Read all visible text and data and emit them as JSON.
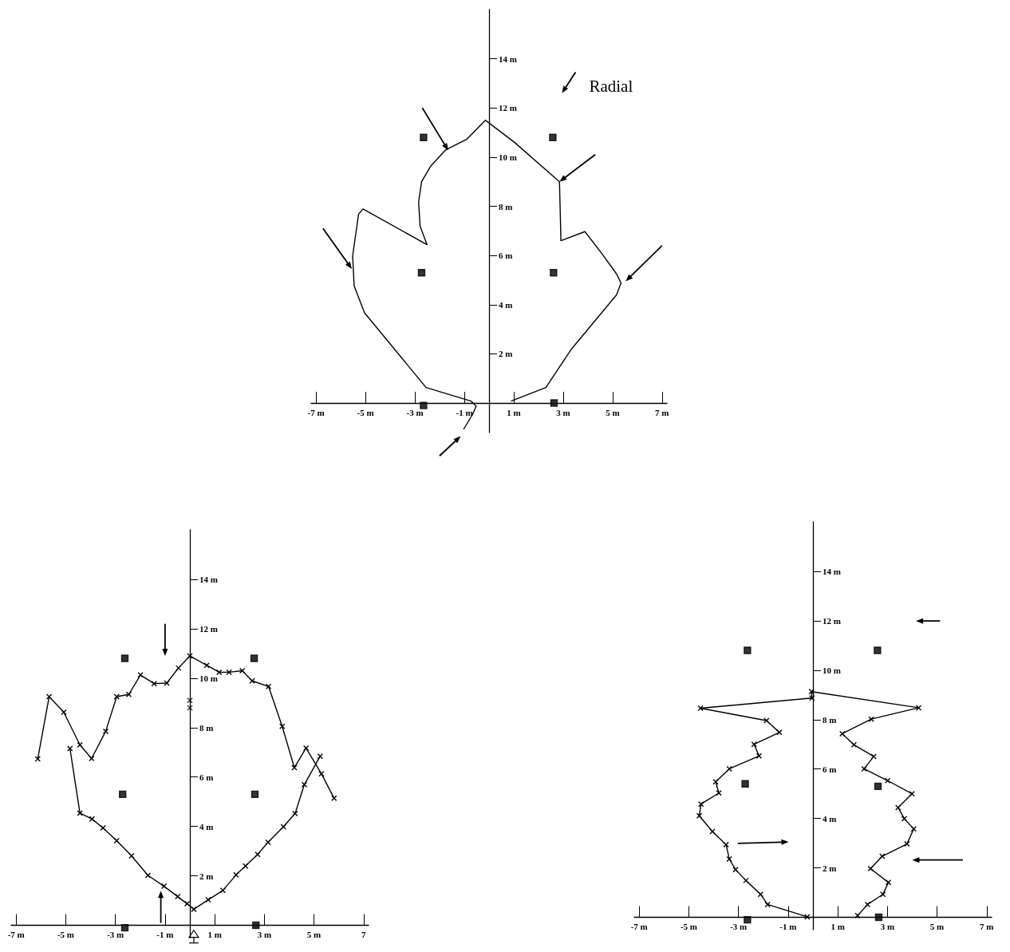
{
  "chart_data": [
    {
      "type": "line",
      "annotations": [
        "Radial"
      ],
      "xlim": [
        -7.2,
        7.2
      ],
      "ylim": [
        -1.2,
        16
      ],
      "xticks": [
        {
          "value": -7,
          "label": "-7 m"
        },
        {
          "value": -5,
          "label": "-5 m"
        },
        {
          "value": -3,
          "label": "-3 m"
        },
        {
          "value": -1,
          "label": "-1 m"
        },
        {
          "value": 1,
          "label": "1 m"
        },
        {
          "value": 3,
          "label": "3 m"
        },
        {
          "value": 5,
          "label": "5 m"
        },
        {
          "value": 7,
          "label": "7 m"
        }
      ],
      "yticks": [
        {
          "value": 2,
          "label": "2 m"
        },
        {
          "value": 4,
          "label": "4 m"
        },
        {
          "value": 6,
          "label": "6 m"
        },
        {
          "value": 8,
          "label": "8 m"
        },
        {
          "value": 10,
          "label": "10 m"
        },
        {
          "value": 12,
          "label": "12 m"
        },
        {
          "value": 14,
          "label": "14 m"
        }
      ],
      "series": [
        {
          "type": "line",
          "color": "#000000",
          "marker": "none",
          "x": [
            0.89,
            2.3,
            3.34,
            5.16,
            5.34,
            5.16,
            4.55,
            3.88,
            2.91,
            2.85,
            1.03,
            -0.15,
            -0.91,
            -1.76,
            -2.37,
            -2.73,
            -2.85,
            -2.79,
            -2.51,
            -5.1,
            -5.28,
            -5.52,
            -5.46,
            -5.04,
            -2.55,
            -0.73,
            -0.52,
            -0.67,
            -1.03
          ],
          "values": [
            0.08,
            0.63,
            2.2,
            4.4,
            4.88,
            5.25,
            6.1,
            6.97,
            6.6,
            9.0,
            10.6,
            11.5,
            10.72,
            10.29,
            9.62,
            9.0,
            8.17,
            7.19,
            6.44,
            7.89,
            7.68,
            5.98,
            4.76,
            3.67,
            0.63,
            0.08,
            -0.13,
            -0.47,
            -1.07
          ]
        },
        {
          "type": "scatter",
          "color": "#000000",
          "marker": "square",
          "x": [
            -2.65,
            2.58,
            -2.73,
            2.61,
            -2.65,
            2.63
          ],
          "values": [
            10.8,
            10.8,
            5.3,
            5.3,
            -0.1,
            0.0
          ]
        }
      ]
    },
    {
      "type": "line",
      "xlim": [
        -7.2,
        7.2
      ],
      "ylim": [
        -0.5,
        16
      ],
      "xticks": [
        {
          "value": -7,
          "label": "-7 m"
        },
        {
          "value": -5,
          "label": "-5 m"
        },
        {
          "value": -3,
          "label": "-3 m"
        },
        {
          "value": -1,
          "label": "-1 m"
        },
        {
          "value": 1,
          "label": "1 m"
        },
        {
          "value": 3,
          "label": "3 m"
        },
        {
          "value": 5,
          "label": "5 m"
        },
        7
      ],
      "yticks": [
        {
          "value": 2,
          "label": "2 m"
        },
        {
          "value": 4,
          "label": "4 m"
        },
        {
          "value": 6,
          "label": "6 m"
        },
        {
          "value": 8,
          "label": "8 m"
        },
        {
          "value": 10,
          "label": "10 m"
        },
        {
          "value": 12,
          "label": "12 m"
        },
        {
          "value": 14,
          "label": "14 m"
        }
      ],
      "series": [
        {
          "type": "line",
          "color": "#000000",
          "marker": "cross",
          "x": [
            -6.13,
            -5.67,
            -5.08,
            -4.43,
            -3.96,
            -3.39,
            -2.95,
            -2.46,
            -1.99,
            -1.44,
            -0.93,
            -0.46,
            0,
            0.68,
            1.18,
            1.58,
            2.11,
            2.51,
            3.17,
            3.72,
            4.21,
            4.68,
            5.3,
            5.81
          ],
          "values": [
            6.73,
            9.25,
            8.62,
            7.3,
            6.75,
            7.85,
            9.25,
            9.34,
            10.13,
            9.78,
            9.8,
            10.41,
            10.9,
            10.52,
            10.24,
            10.24,
            10.3,
            9.89,
            9.66,
            8.05,
            6.38,
            7.17,
            6.13,
            5.14
          ]
        },
        {
          "type": "line",
          "color": "#000000",
          "marker": "cross",
          "x": [
            -4.83,
            -4.43,
            -3.94,
            -3.5,
            -2.95,
            -2.35,
            -1.69,
            -1.04,
            -0.49,
            -0.11,
            0.16,
            0.74,
            1.33,
            1.86,
            2.24,
            2.73,
            3.15,
            3.77,
            4.24,
            4.61,
            5.25
          ],
          "values": [
            7.15,
            4.54,
            4.3,
            3.94,
            3.42,
            2.81,
            2.02,
            1.58,
            1.16,
            0.87,
            0.65,
            1.03,
            1.41,
            2.04,
            2.4,
            2.87,
            3.36,
            3.99,
            4.52,
            5.69,
            6.84
          ]
        },
        {
          "type": "scatter",
          "color": "#000000",
          "marker": "cross",
          "x": [
            0,
            0
          ],
          "values": [
            9.1,
            8.8
          ]
        },
        {
          "type": "scatter",
          "color": "#000000",
          "marker": "square",
          "x": [
            -2.62,
            2.59,
            -2.71,
            2.62,
            -2.62,
            2.66
          ],
          "values": [
            10.8,
            10.8,
            5.3,
            5.3,
            -0.1,
            0.0
          ]
        }
      ]
    },
    {
      "type": "line",
      "xlim": [
        -7.2,
        7.2
      ],
      "ylim": [
        -0.5,
        16
      ],
      "xticks": [
        {
          "value": -7,
          "label": "-7 m"
        },
        {
          "value": -5,
          "label": "-5 m"
        },
        {
          "value": -3,
          "label": "-3 m"
        },
        {
          "value": -1,
          "label": "-1 m"
        },
        {
          "value": 1,
          "label": "1 m"
        },
        {
          "value": 3,
          "label": "3 m"
        },
        {
          "value": 5,
          "label": "5 m"
        },
        {
          "value": 7,
          "label": "7 m"
        }
      ],
      "yticks": [
        {
          "value": 2,
          "label": "2 m"
        },
        {
          "value": 4,
          "label": "4 m"
        },
        {
          "value": 6,
          "label": "6 m"
        },
        {
          "value": 8,
          "label": "8 m"
        },
        {
          "value": 10,
          "label": "10 m"
        },
        {
          "value": 12,
          "label": "12 m"
        },
        {
          "value": 14,
          "label": "14 m"
        }
      ],
      "series": [
        {
          "type": "line",
          "color": "#000000",
          "marker": "cross",
          "x": [
            -0.23,
            -1.83,
            -2.11,
            -2.7,
            -3.12,
            -3.37,
            -3.5,
            -4.05,
            -4.58,
            -4.51,
            -3.79,
            -3.92,
            -3.37,
            -2.17,
            -2.37,
            -1.35,
            -1.87,
            -4.53,
            -0.04,
            -0.06,
            4.26,
            2.35,
            1.18,
            1.65,
            2.45,
            2.06,
            3.01,
            3.99,
            3.43,
            3.68,
            4.06,
            3.79,
            2.79,
            2.32,
            3.04,
            2.82,
            2.2,
            1.8
          ],
          "values": [
            0.02,
            0.52,
            0.93,
            1.49,
            1.93,
            2.36,
            2.94,
            3.47,
            4.11,
            4.58,
            5.03,
            5.48,
            6.01,
            6.53,
            7.0,
            7.48,
            7.96,
            8.46,
            8.87,
            9.13,
            8.48,
            8.02,
            7.43,
            6.98,
            6.51,
            6.01,
            5.53,
            5.0,
            4.44,
            3.99,
            3.58,
            2.97,
            2.47,
            1.97,
            1.41,
            0.93,
            0.52,
            0.07
          ]
        },
        {
          "type": "scatter",
          "color": "#000000",
          "marker": "square",
          "x": [
            -2.64,
            2.6,
            -2.73,
            2.62,
            -2.64,
            2.65
          ],
          "values": [
            10.8,
            10.8,
            5.4,
            5.3,
            -0.1,
            0.0
          ]
        }
      ]
    }
  ]
}
